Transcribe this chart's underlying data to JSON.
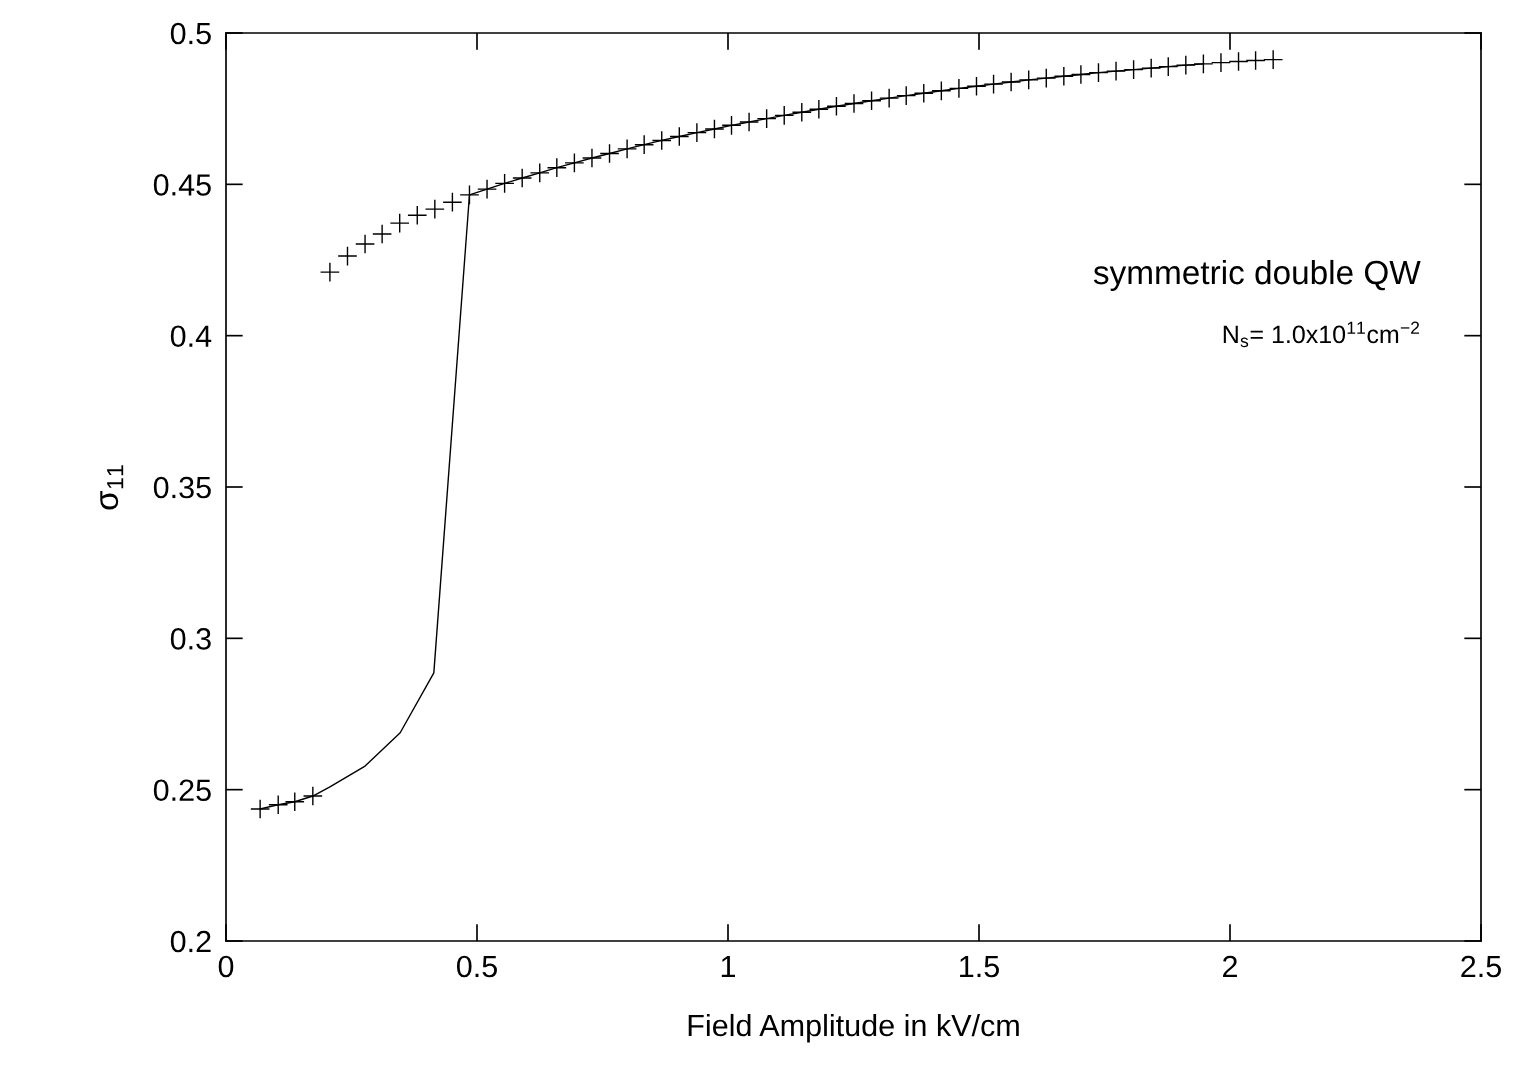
{
  "chart_data": {
    "type": "line",
    "xlabel": "Field Amplitude in kV/cm",
    "ylabel": "σ$_{11}$",
    "annotations": [
      {
        "text": "symmetric double QW"
      },
      {
        "text": "N$_{s}$= 1.0x10$^{11}$cm$^{−2}$"
      }
    ],
    "xlim": [
      0,
      2.5
    ],
    "xticks": [
      0,
      0.5,
      1,
      1.5,
      2,
      2.5
    ],
    "ylim": [
      0.2,
      0.5
    ],
    "yticks": [
      0.2,
      0.25,
      0.3,
      0.35,
      0.4,
      0.45,
      0.5
    ],
    "grid": false,
    "legend": false,
    "series": [
      {
        "color": "#000000",
        "marker": "none",
        "line_style": "solid",
        "x": [
          0.068,
          0.104,
          0.137,
          0.173,
          0.207,
          0.277,
          0.347,
          0.414,
          0.485,
          0.52,
          0.555,
          0.59,
          0.625,
          0.659,
          0.694,
          0.729,
          0.764,
          0.799,
          0.833,
          0.868,
          0.903,
          0.938,
          0.973,
          1.007,
          1.042,
          1.077,
          1.112,
          1.147,
          1.181,
          1.216,
          1.251,
          1.286,
          1.321,
          1.355,
          1.39,
          1.425,
          1.46,
          1.495,
          1.529,
          1.564,
          1.599,
          1.634,
          1.669,
          1.703,
          1.738,
          1.773,
          1.808,
          1.843,
          1.877,
          1.912,
          1.947
        ],
        "values": [
          0.2436,
          0.245,
          0.246,
          0.2479,
          0.2509,
          0.2578,
          0.2688,
          0.2886,
          0.4465,
          0.4484,
          0.4503,
          0.4521,
          0.4538,
          0.4555,
          0.4571,
          0.4587,
          0.4602,
          0.4617,
          0.4631,
          0.4645,
          0.4658,
          0.4671,
          0.4683,
          0.4695,
          0.4706,
          0.4717,
          0.4728,
          0.4738,
          0.4748,
          0.4758,
          0.4767,
          0.4776,
          0.4785,
          0.4793,
          0.4801,
          0.4809,
          0.4817,
          0.4824,
          0.4831,
          0.4838,
          0.4845,
          0.4851,
          0.4857,
          0.4863,
          0.4869,
          0.4874,
          0.4879,
          0.4884,
          0.4889,
          0.4894,
          0.4898
        ]
      },
      {
        "type": "scatter",
        "color": "#000000",
        "marker": "cross",
        "x": [
          0.068,
          0.104,
          0.137,
          0.173,
          0.207,
          0.242,
          0.277,
          0.311,
          0.346,
          0.381,
          0.416,
          0.451,
          0.485,
          0.52,
          0.555,
          0.59,
          0.625,
          0.659,
          0.694,
          0.729,
          0.764,
          0.799,
          0.833,
          0.868,
          0.903,
          0.938,
          0.973,
          1.007,
          1.042,
          1.077,
          1.112,
          1.147,
          1.181,
          1.216,
          1.251,
          1.286,
          1.321,
          1.355,
          1.39,
          1.425,
          1.46,
          1.495,
          1.529,
          1.564,
          1.599,
          1.634,
          1.669,
          1.703,
          1.738,
          1.773,
          1.808,
          1.843,
          1.877,
          1.912,
          1.947,
          1.982,
          2.017,
          2.051,
          2.086
        ],
        "values": [
          0.2436,
          0.245,
          0.246,
          0.2479,
          0.421,
          0.4263,
          0.4303,
          0.4336,
          0.4372,
          0.4398,
          0.4418,
          0.4441,
          0.4465,
          0.4484,
          0.4503,
          0.4521,
          0.4538,
          0.4555,
          0.4571,
          0.4587,
          0.4602,
          0.4617,
          0.4631,
          0.4645,
          0.4658,
          0.4671,
          0.4683,
          0.4695,
          0.4706,
          0.4717,
          0.4728,
          0.4738,
          0.4748,
          0.4758,
          0.4767,
          0.4776,
          0.4785,
          0.4793,
          0.4801,
          0.4809,
          0.4817,
          0.4824,
          0.4831,
          0.4838,
          0.4845,
          0.4851,
          0.4857,
          0.4863,
          0.4869,
          0.4874,
          0.4879,
          0.4884,
          0.4889,
          0.4894,
          0.4898,
          0.4902,
          0.4906,
          0.4909,
          0.4912
        ]
      }
    ]
  }
}
